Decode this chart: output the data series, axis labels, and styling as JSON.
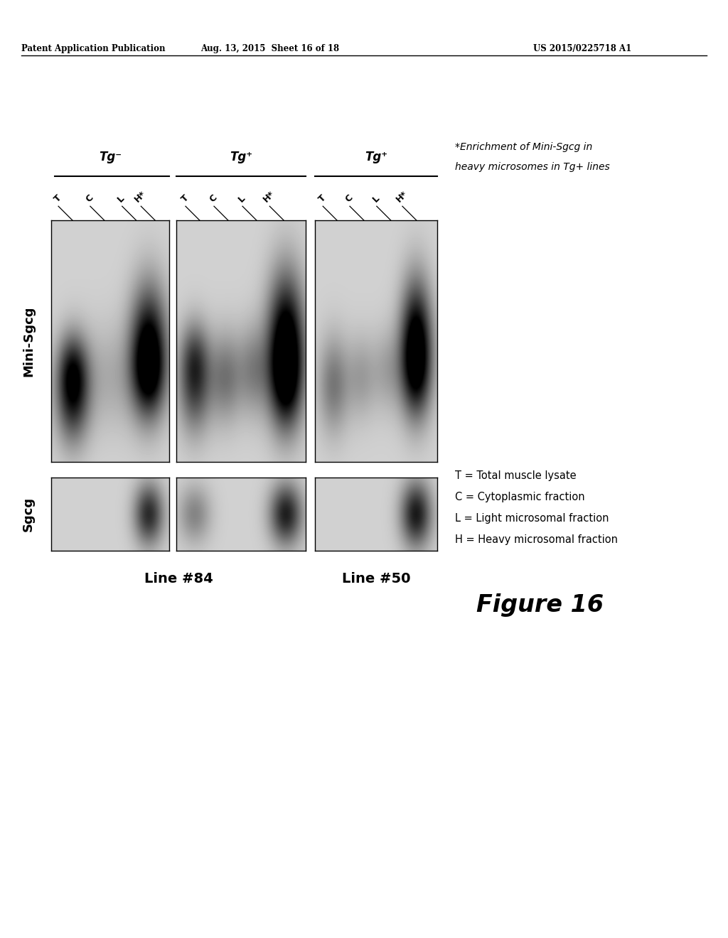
{
  "bg_color": "#ffffff",
  "header_left": "Patent Application Publication",
  "header_center": "Aug. 13, 2015  Sheet 16 of 18",
  "header_right": "US 2015/0225718 A1",
  "figure_label": "Figure 16",
  "line84_label": "Line #84",
  "line50_label": "Line #50",
  "mini_sgcg_label": "Mini-Sgcg",
  "sgcg_label": "Sgcg",
  "tg_minus": "Tg⁻",
  "tg_plus": "Tg⁺",
  "legend_T": "T = Total muscle lysate",
  "legend_C": "C = Cytoplasmic fraction",
  "legend_L": "L = Light microsomal fraction",
  "legend_H": "H = Heavy microsomal fraction",
  "enrichment_line1": "*Enrichment of Mini-Sgcg in",
  "enrichment_line2": "heavy microsomes in Tg+ lines",
  "note_star": "*"
}
